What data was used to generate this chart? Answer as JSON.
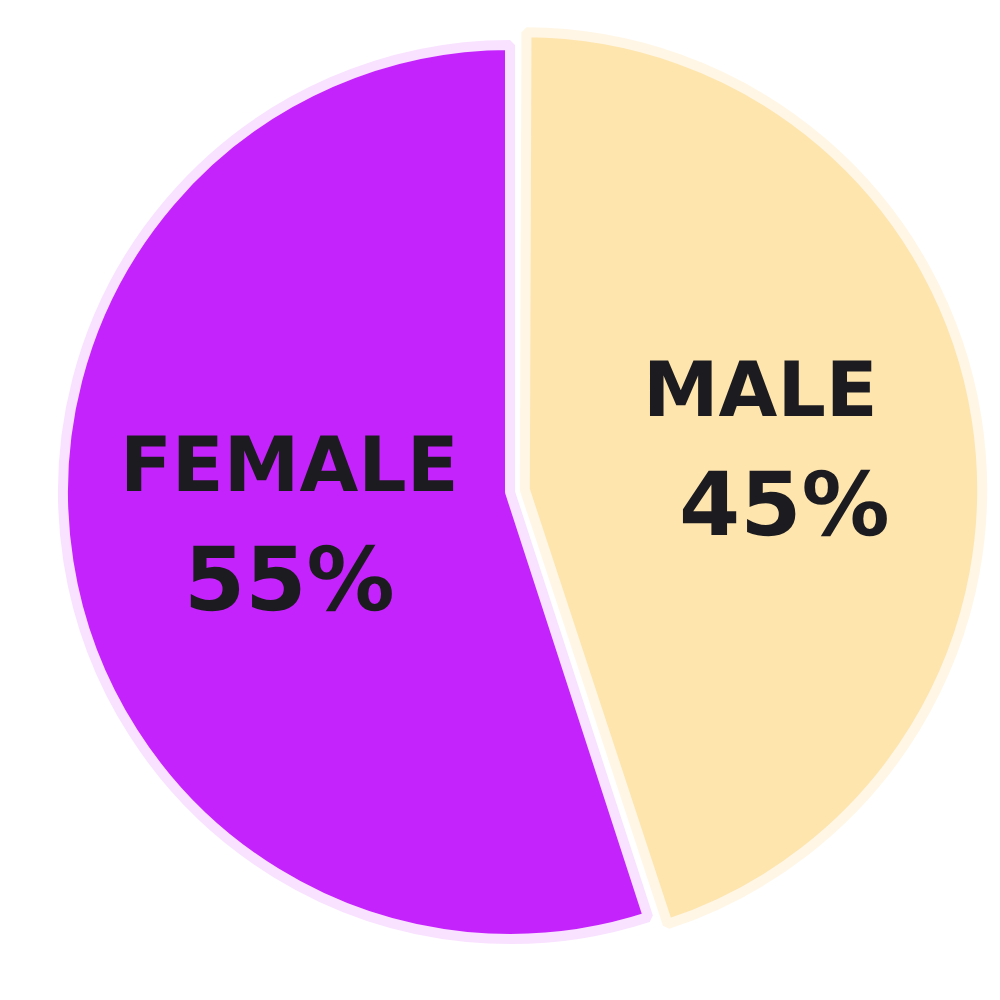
{
  "chart_data": {
    "type": "pie",
    "categories": [
      "MALE",
      "FEMALE"
    ],
    "values": [
      45,
      55
    ],
    "colors": [
      "#fee5ae",
      "#c424fb"
    ],
    "value_labels": [
      "45%",
      "55%"
    ],
    "legend": false
  }
}
